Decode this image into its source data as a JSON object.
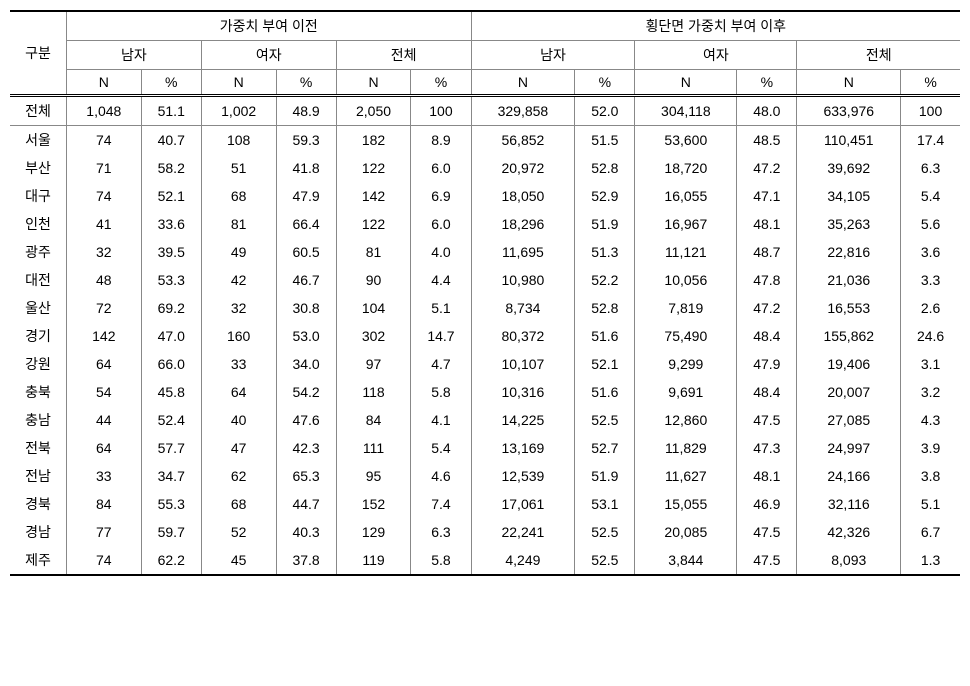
{
  "table": {
    "headers": {
      "rowLabel": "구분",
      "group1": "가중치 부여 이전",
      "group2": "횡단면 가중치 부여 이후",
      "male": "남자",
      "female": "여자",
      "total": "전체",
      "n": "N",
      "pct": "%"
    },
    "columns": [
      "region",
      "g1_m_n",
      "g1_m_p",
      "g1_f_n",
      "g1_f_p",
      "g1_t_n",
      "g1_t_p",
      "g2_m_n",
      "g2_m_p",
      "g2_f_n",
      "g2_f_p",
      "g2_t_n",
      "g2_t_p"
    ],
    "totalRow": {
      "region": "전체",
      "g1_m_n": "1,048",
      "g1_m_p": "51.1",
      "g1_f_n": "1,002",
      "g1_f_p": "48.9",
      "g1_t_n": "2,050",
      "g1_t_p": "100",
      "g2_m_n": "329,858",
      "g2_m_p": "52.0",
      "g2_f_n": "304,118",
      "g2_f_p": "48.0",
      "g2_t_n": "633,976",
      "g2_t_p": "100"
    },
    "rows": [
      {
        "region": "서울",
        "g1_m_n": "74",
        "g1_m_p": "40.7",
        "g1_f_n": "108",
        "g1_f_p": "59.3",
        "g1_t_n": "182",
        "g1_t_p": "8.9",
        "g2_m_n": "56,852",
        "g2_m_p": "51.5",
        "g2_f_n": "53,600",
        "g2_f_p": "48.5",
        "g2_t_n": "110,451",
        "g2_t_p": "17.4"
      },
      {
        "region": "부산",
        "g1_m_n": "71",
        "g1_m_p": "58.2",
        "g1_f_n": "51",
        "g1_f_p": "41.8",
        "g1_t_n": "122",
        "g1_t_p": "6.0",
        "g2_m_n": "20,972",
        "g2_m_p": "52.8",
        "g2_f_n": "18,720",
        "g2_f_p": "47.2",
        "g2_t_n": "39,692",
        "g2_t_p": "6.3"
      },
      {
        "region": "대구",
        "g1_m_n": "74",
        "g1_m_p": "52.1",
        "g1_f_n": "68",
        "g1_f_p": "47.9",
        "g1_t_n": "142",
        "g1_t_p": "6.9",
        "g2_m_n": "18,050",
        "g2_m_p": "52.9",
        "g2_f_n": "16,055",
        "g2_f_p": "47.1",
        "g2_t_n": "34,105",
        "g2_t_p": "5.4"
      },
      {
        "region": "인천",
        "g1_m_n": "41",
        "g1_m_p": "33.6",
        "g1_f_n": "81",
        "g1_f_p": "66.4",
        "g1_t_n": "122",
        "g1_t_p": "6.0",
        "g2_m_n": "18,296",
        "g2_m_p": "51.9",
        "g2_f_n": "16,967",
        "g2_f_p": "48.1",
        "g2_t_n": "35,263",
        "g2_t_p": "5.6"
      },
      {
        "region": "광주",
        "g1_m_n": "32",
        "g1_m_p": "39.5",
        "g1_f_n": "49",
        "g1_f_p": "60.5",
        "g1_t_n": "81",
        "g1_t_p": "4.0",
        "g2_m_n": "11,695",
        "g2_m_p": "51.3",
        "g2_f_n": "11,121",
        "g2_f_p": "48.7",
        "g2_t_n": "22,816",
        "g2_t_p": "3.6"
      },
      {
        "region": "대전",
        "g1_m_n": "48",
        "g1_m_p": "53.3",
        "g1_f_n": "42",
        "g1_f_p": "46.7",
        "g1_t_n": "90",
        "g1_t_p": "4.4",
        "g2_m_n": "10,980",
        "g2_m_p": "52.2",
        "g2_f_n": "10,056",
        "g2_f_p": "47.8",
        "g2_t_n": "21,036",
        "g2_t_p": "3.3"
      },
      {
        "region": "울산",
        "g1_m_n": "72",
        "g1_m_p": "69.2",
        "g1_f_n": "32",
        "g1_f_p": "30.8",
        "g1_t_n": "104",
        "g1_t_p": "5.1",
        "g2_m_n": "8,734",
        "g2_m_p": "52.8",
        "g2_f_n": "7,819",
        "g2_f_p": "47.2",
        "g2_t_n": "16,553",
        "g2_t_p": "2.6"
      },
      {
        "region": "경기",
        "g1_m_n": "142",
        "g1_m_p": "47.0",
        "g1_f_n": "160",
        "g1_f_p": "53.0",
        "g1_t_n": "302",
        "g1_t_p": "14.7",
        "g2_m_n": "80,372",
        "g2_m_p": "51.6",
        "g2_f_n": "75,490",
        "g2_f_p": "48.4",
        "g2_t_n": "155,862",
        "g2_t_p": "24.6"
      },
      {
        "region": "강원",
        "g1_m_n": "64",
        "g1_m_p": "66.0",
        "g1_f_n": "33",
        "g1_f_p": "34.0",
        "g1_t_n": "97",
        "g1_t_p": "4.7",
        "g2_m_n": "10,107",
        "g2_m_p": "52.1",
        "g2_f_n": "9,299",
        "g2_f_p": "47.9",
        "g2_t_n": "19,406",
        "g2_t_p": "3.1"
      },
      {
        "region": "충북",
        "g1_m_n": "54",
        "g1_m_p": "45.8",
        "g1_f_n": "64",
        "g1_f_p": "54.2",
        "g1_t_n": "118",
        "g1_t_p": "5.8",
        "g2_m_n": "10,316",
        "g2_m_p": "51.6",
        "g2_f_n": "9,691",
        "g2_f_p": "48.4",
        "g2_t_n": "20,007",
        "g2_t_p": "3.2"
      },
      {
        "region": "충남",
        "g1_m_n": "44",
        "g1_m_p": "52.4",
        "g1_f_n": "40",
        "g1_f_p": "47.6",
        "g1_t_n": "84",
        "g1_t_p": "4.1",
        "g2_m_n": "14,225",
        "g2_m_p": "52.5",
        "g2_f_n": "12,860",
        "g2_f_p": "47.5",
        "g2_t_n": "27,085",
        "g2_t_p": "4.3"
      },
      {
        "region": "전북",
        "g1_m_n": "64",
        "g1_m_p": "57.7",
        "g1_f_n": "47",
        "g1_f_p": "42.3",
        "g1_t_n": "111",
        "g1_t_p": "5.4",
        "g2_m_n": "13,169",
        "g2_m_p": "52.7",
        "g2_f_n": "11,829",
        "g2_f_p": "47.3",
        "g2_t_n": "24,997",
        "g2_t_p": "3.9"
      },
      {
        "region": "전남",
        "g1_m_n": "33",
        "g1_m_p": "34.7",
        "g1_f_n": "62",
        "g1_f_p": "65.3",
        "g1_t_n": "95",
        "g1_t_p": "4.6",
        "g2_m_n": "12,539",
        "g2_m_p": "51.9",
        "g2_f_n": "11,627",
        "g2_f_p": "48.1",
        "g2_t_n": "24,166",
        "g2_t_p": "3.8"
      },
      {
        "region": "경북",
        "g1_m_n": "84",
        "g1_m_p": "55.3",
        "g1_f_n": "68",
        "g1_f_p": "44.7",
        "g1_t_n": "152",
        "g1_t_p": "7.4",
        "g2_m_n": "17,061",
        "g2_m_p": "53.1",
        "g2_f_n": "15,055",
        "g2_f_p": "46.9",
        "g2_t_n": "32,116",
        "g2_t_p": "5.1"
      },
      {
        "region": "경남",
        "g1_m_n": "77",
        "g1_m_p": "59.7",
        "g1_f_n": "52",
        "g1_f_p": "40.3",
        "g1_t_n": "129",
        "g1_t_p": "6.3",
        "g2_m_n": "22,241",
        "g2_m_p": "52.5",
        "g2_f_n": "20,085",
        "g2_f_p": "47.5",
        "g2_t_n": "42,326",
        "g2_t_p": "6.7"
      },
      {
        "region": "제주",
        "g1_m_n": "74",
        "g1_m_p": "62.2",
        "g1_f_n": "45",
        "g1_f_p": "37.8",
        "g1_t_n": "119",
        "g1_t_p": "5.8",
        "g2_m_n": "4,249",
        "g2_m_p": "52.5",
        "g2_f_n": "3,844",
        "g2_f_p": "47.5",
        "g2_t_n": "8,093",
        "g2_t_p": "1.3"
      }
    ]
  },
  "style": {
    "font_family": "Malgun Gothic",
    "font_size_pt": 11,
    "border_color": "#888888",
    "heavy_border_color": "#000000",
    "background_color": "#ffffff",
    "text_color": "#000000"
  }
}
